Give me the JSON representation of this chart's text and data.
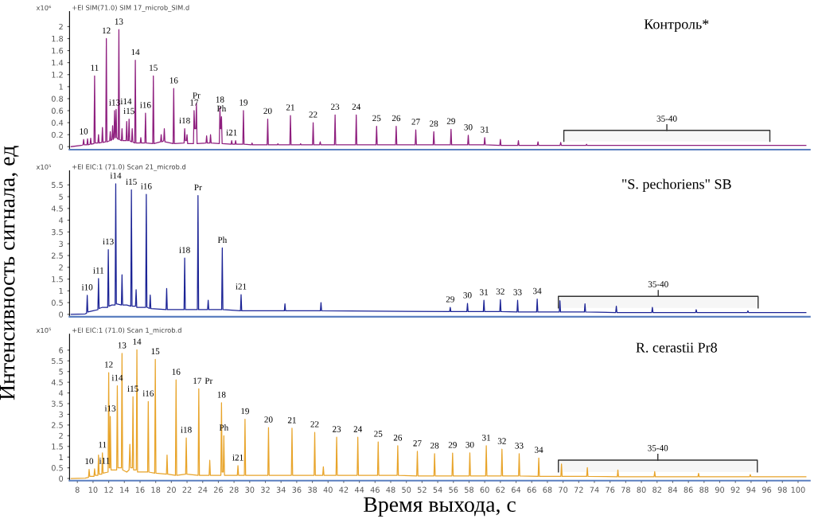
{
  "chart_data": [
    {
      "type": "line",
      "xlim": [
        7,
        101.5
      ],
      "ylim": [
        -0.05,
        2.25
      ],
      "yticks": [
        0,
        0.2,
        0.4,
        0.6,
        0.8,
        1,
        1.2,
        1.4,
        1.6,
        1.8,
        2
      ],
      "tick_labels": "y",
      "grid": false,
      "legend": false,
      "title": "Контроль*",
      "series": [
        {
          "color": "#8e1e7e",
          "x": [
            7.2,
            8.5,
            8.72,
            8.8,
            8.88,
            9.22,
            9.3,
            9.38,
            9.62,
            9.7,
            9.78,
            10.12,
            10.2,
            10.28,
            10.62,
            10.7,
            10.78,
            11.12,
            11.2,
            11.28,
            11.62,
            11.7,
            11.78,
            12.12,
            12.2,
            12.28,
            12.42,
            12.5,
            12.58,
            12.67,
            12.75,
            12.83,
            12.87,
            12.95,
            13.03,
            13.22,
            13.3,
            13.38,
            13.62,
            13.7,
            13.78,
            14.22,
            14.3,
            14.38,
            14.52,
            14.6,
            14.68,
            14.92,
            15.0,
            15.08,
            15.32,
            15.4,
            15.48,
            16.02,
            16.1,
            16.18,
            16.62,
            16.7,
            16.78,
            17.62,
            17.7,
            17.78,
            18.62,
            18.7,
            18.78,
            19.02,
            19.1,
            19.18,
            20.22,
            20.3,
            20.38,
            21.62,
            21.7,
            21.78,
            21.92,
            22.0,
            22.08,
            22.82,
            22.9,
            22.98,
            23.12,
            23.2,
            23.28,
            24.42,
            24.5,
            24.58,
            24.92,
            25.0,
            25.08,
            26.12,
            26.2,
            26.28,
            26.32,
            26.4,
            26.48,
            27.62,
            27.7,
            27.78,
            28.12,
            28.2,
            28.28,
            29.12,
            29.2,
            29.28,
            30.22,
            30.3,
            30.38,
            32.22,
            32.3,
            32.38,
            33.52,
            33.6,
            33.68,
            35.12,
            35.2,
            35.28,
            36.42,
            36.5,
            36.58,
            38.02,
            38.1,
            38.18,
            38.92,
            39.0,
            39.08,
            40.82,
            40.9,
            40.98,
            43.52,
            43.6,
            43.68,
            46.12,
            46.2,
            46.28,
            48.62,
            48.7,
            48.78,
            51.12,
            51.2,
            51.28,
            53.42,
            53.5,
            53.58,
            55.62,
            55.7,
            55.78,
            57.82,
            57.9,
            57.98,
            59.92,
            60.0,
            60.08,
            61.92,
            62.0,
            62.08,
            64.22,
            64.3,
            64.38,
            66.72,
            66.8,
            66.88,
            69.62,
            69.7,
            69.78,
            72.92,
            73.0,
            73.08,
            101
          ],
          "values": [
            0,
            0.02,
            0.03,
            0.12,
            0.03,
            0.03,
            0.13,
            0.03,
            0.04,
            0.14,
            0.04,
            0.05,
            1.18,
            0.06,
            0.06,
            0.2,
            0.06,
            0.07,
            0.32,
            0.07,
            0.08,
            1.8,
            0.08,
            0.1,
            0.25,
            0.1,
            0.12,
            0.35,
            0.12,
            0.15,
            0.6,
            0.15,
            0.15,
            0.62,
            0.15,
            0.12,
            1.95,
            0.12,
            0.1,
            0.3,
            0.1,
            0.1,
            0.42,
            0.1,
            0.1,
            0.46,
            0.1,
            0.08,
            0.3,
            0.08,
            0.06,
            1.44,
            0.06,
            0.06,
            0.15,
            0.06,
            0.06,
            0.56,
            0.06,
            0.05,
            1.18,
            0.05,
            0.08,
            0.2,
            0.08,
            0.1,
            0.3,
            0.08,
            0.05,
            0.97,
            0.05,
            0.06,
            0.3,
            0.1,
            0.1,
            0.2,
            0.05,
            0.05,
            0.6,
            0.3,
            0.3,
            0.72,
            0.05,
            0.06,
            0.18,
            0.06,
            0.06,
            0.2,
            0.06,
            0.05,
            0.65,
            0.3,
            0.3,
            0.5,
            0.05,
            0.04,
            0.1,
            0.04,
            0.04,
            0.1,
            0.04,
            0.04,
            0.6,
            0.04,
            0.03,
            0.06,
            0.03,
            0.03,
            0.46,
            0.03,
            0.03,
            0.05,
            0.03,
            0.03,
            0.52,
            0.03,
            0.03,
            0.05,
            0.03,
            0.03,
            0.4,
            0.03,
            0.03,
            0.08,
            0.03,
            0.03,
            0.53,
            0.03,
            0.03,
            0.53,
            0.03,
            0.03,
            0.34,
            0.03,
            0.03,
            0.34,
            0.03,
            0.03,
            0.28,
            0.03,
            0.03,
            0.25,
            0.03,
            0.03,
            0.29,
            0.03,
            0.03,
            0.19,
            0.03,
            0.03,
            0.15,
            0.03,
            0.02,
            0.12,
            0.02,
            0.02,
            0.1,
            0.02,
            0.02,
            0.08,
            0.02,
            0.02,
            0.07,
            0.02,
            0.02,
            0.04,
            0.02,
            0.02
          ]
        }
      ],
      "bands": [
        {
          "axis": "x",
          "from": 70.1,
          "to": 96.4,
          "label": "35-40"
        }
      ],
      "annotations": [
        "x10⁶",
        "+EI SIM(71.0) SIM 17_microb_SIM.d",
        {
          "text": "10",
          "x": 8.8,
          "y": 0.12
        },
        {
          "text": "11",
          "x": 10.2,
          "y": 1.18
        },
        {
          "text": "12",
          "x": 11.7,
          "y": 1.8
        },
        {
          "text": "i13",
          "x": 12.75,
          "y": 0.6
        },
        {
          "text": "i14",
          "x": 12.95,
          "y": 0.62
        },
        {
          "text": "13",
          "x": 13.3,
          "y": 1.95
        },
        {
          "text": "i15",
          "x": 14.6,
          "y": 0.46
        },
        {
          "text": "14",
          "x": 15.4,
          "y": 1.44
        },
        {
          "text": "i16",
          "x": 16.7,
          "y": 0.56
        },
        {
          "text": "15",
          "x": 17.7,
          "y": 1.18
        },
        {
          "text": "16",
          "x": 20.3,
          "y": 0.97
        },
        {
          "text": "i18",
          "x": 21.7,
          "y": 0.3
        },
        {
          "text": "17",
          "x": 22.9,
          "y": 0.6
        },
        {
          "text": "Pr",
          "x": 23.2,
          "y": 0.72
        },
        {
          "text": "18",
          "x": 26.2,
          "y": 0.65
        },
        {
          "text": "Ph",
          "x": 26.4,
          "y": 0.5
        },
        {
          "text": "i21",
          "x": 27.7,
          "y": 0.1
        },
        {
          "text": "19",
          "x": 29.2,
          "y": 0.6
        },
        {
          "text": "20",
          "x": 32.3,
          "y": 0.46
        },
        {
          "text": "21",
          "x": 35.2,
          "y": 0.52
        },
        {
          "text": "22",
          "x": 38.1,
          "y": 0.4
        },
        {
          "text": "23",
          "x": 40.9,
          "y": 0.53
        },
        {
          "text": "24",
          "x": 43.6,
          "y": 0.53
        },
        {
          "text": "25",
          "x": 46.2,
          "y": 0.34
        },
        {
          "text": "26",
          "x": 48.7,
          "y": 0.34
        },
        {
          "text": "27",
          "x": 51.2,
          "y": 0.28
        },
        {
          "text": "28",
          "x": 53.5,
          "y": 0.25
        },
        {
          "text": "29",
          "x": 55.7,
          "y": 0.29
        },
        {
          "text": "30",
          "x": 57.9,
          "y": 0.19
        },
        {
          "text": "31",
          "x": 60.0,
          "y": 0.15
        }
      ]
    },
    {
      "type": "line",
      "xlim": [
        7,
        101.5
      ],
      "ylim": [
        -0.1,
        6.1
      ],
      "yticks": [
        0,
        0.5,
        1,
        1.5,
        2,
        2.5,
        3,
        3.5,
        4,
        4.5,
        5,
        5.5
      ],
      "tick_labels": "y",
      "grid": false,
      "legend": false,
      "ylabel": "Интенсивность сигнала, ед",
      "title": "\"S. pechoriens\" SB",
      "series": [
        {
          "color": "#1c2496",
          "x": [
            7.2,
            9.0,
            9.18,
            9.26,
            9.34,
            10.0,
            10.62,
            10.7,
            10.78,
            11.2,
            11.87,
            11.95,
            12.03,
            12.4,
            12.82,
            12.9,
            12.98,
            13.62,
            13.7,
            13.78,
            14.3,
            14.82,
            14.9,
            14.98,
            15.42,
            15.5,
            15.58,
            16.72,
            16.8,
            16.88,
            17.22,
            17.3,
            17.38,
            19.32,
            19.4,
            19.48,
            21.62,
            21.7,
            21.78,
            23.32,
            23.4,
            23.48,
            24.62,
            24.7,
            24.78,
            26.42,
            26.5,
            26.58,
            28.82,
            28.9,
            28.98,
            34.42,
            34.5,
            34.58,
            39.02,
            39.1,
            39.18,
            55.52,
            55.6,
            55.68,
            57.72,
            57.8,
            57.88,
            59.82,
            59.9,
            59.98,
            61.92,
            62.0,
            62.08,
            64.12,
            64.2,
            64.28,
            66.62,
            66.7,
            66.78,
            69.52,
            69.6,
            69.68,
            72.72,
            72.8,
            72.88,
            76.72,
            76.8,
            76.88,
            81.32,
            81.4,
            81.48,
            86.92,
            87.0,
            87.08,
            93.52,
            93.6,
            93.68,
            101
          ],
          "values": [
            0,
            0.02,
            0.05,
            0.81,
            0.1,
            0.15,
            0.2,
            1.52,
            0.25,
            0.3,
            0.3,
            2.75,
            0.35,
            0.4,
            0.4,
            5.55,
            0.45,
            0.4,
            1.68,
            0.4,
            0.4,
            0.35,
            5.29,
            0.35,
            0.35,
            1.05,
            0.3,
            0.3,
            5.1,
            0.3,
            0.25,
            0.82,
            0.25,
            0.2,
            1.1,
            0.2,
            0.2,
            2.39,
            0.2,
            0.2,
            5.05,
            0.2,
            0.2,
            0.6,
            0.2,
            0.2,
            2.82,
            0.2,
            0.15,
            0.84,
            0.15,
            0.15,
            0.45,
            0.15,
            0.15,
            0.5,
            0.15,
            0.12,
            0.3,
            0.12,
            0.12,
            0.47,
            0.12,
            0.12,
            0.6,
            0.12,
            0.12,
            0.63,
            0.12,
            0.1,
            0.6,
            0.1,
            0.1,
            0.65,
            0.1,
            0.1,
            0.58,
            0.1,
            0.1,
            0.45,
            0.1,
            0.08,
            0.35,
            0.08,
            0.08,
            0.3,
            0.08,
            0.08,
            0.2,
            0.08,
            0.08,
            0.15,
            0.08,
            0.08
          ]
        }
      ],
      "bands": [
        {
          "axis": "x",
          "from": 69.4,
          "to": 94.9,
          "label": "35-40"
        }
      ],
      "annotations": [
        "x10⁵",
        "+EI EIC:1 (71.0) Scan 21_microb.d",
        {
          "text": "i10",
          "x": 9.26,
          "y": 0.81
        },
        {
          "text": "i11",
          "x": 10.7,
          "y": 1.52
        },
        {
          "text": "i13",
          "x": 11.95,
          "y": 2.75
        },
        {
          "text": "i14",
          "x": 12.9,
          "y": 5.55
        },
        {
          "text": "i15",
          "x": 14.9,
          "y": 5.29
        },
        {
          "text": "i16",
          "x": 16.8,
          "y": 5.1
        },
        {
          "text": "i18",
          "x": 21.7,
          "y": 2.39
        },
        {
          "text": "Pr",
          "x": 23.4,
          "y": 5.05
        },
        {
          "text": "Ph",
          "x": 26.5,
          "y": 2.82
        },
        {
          "text": "i21",
          "x": 28.9,
          "y": 0.84
        },
        {
          "text": "29",
          "x": 55.6,
          "y": 0.3
        },
        {
          "text": "30",
          "x": 57.8,
          "y": 0.47
        },
        {
          "text": "31",
          "x": 59.9,
          "y": 0.6
        },
        {
          "text": "32",
          "x": 62.0,
          "y": 0.63
        },
        {
          "text": "33",
          "x": 64.2,
          "y": 0.6
        },
        {
          "text": "34",
          "x": 66.7,
          "y": 0.65
        }
      ]
    },
    {
      "type": "line",
      "xlim": [
        7,
        101.5
      ],
      "ylim": [
        -0.1,
        6.75
      ],
      "yticks": [
        0,
        0.5,
        1,
        1.5,
        2,
        2.5,
        3,
        3.5,
        4,
        4.5,
        5,
        5.5,
        6
      ],
      "xticks": [
        8,
        10,
        12,
        14,
        16,
        18,
        20,
        22,
        24,
        26,
        28,
        30,
        32,
        34,
        36,
        38,
        40,
        42,
        44,
        46,
        48,
        50,
        52,
        54,
        56,
        58,
        60,
        62,
        64,
        66,
        68,
        70,
        72,
        74,
        76,
        78,
        80,
        82,
        84,
        86,
        88,
        90,
        92,
        94,
        96,
        98,
        100
      ],
      "grid": false,
      "legend": false,
      "xlabel": "Время выхода, с",
      "title": "R. cerastii Pr8",
      "series": [
        {
          "color": "#e8a42a",
          "x": [
            7.2,
            9.0,
            9.42,
            9.5,
            9.58,
            10.12,
            10.2,
            10.28,
            10.62,
            10.7,
            10.78,
            11.12,
            11.2,
            11.28,
            11.92,
            12.0,
            12.08,
            12.15,
            12.2,
            12.3,
            13.02,
            13.1,
            13.18,
            13.62,
            13.7,
            13.78,
            14.3,
            14.6,
            14.7,
            14.8,
            15.02,
            15.1,
            15.18,
            15.52,
            15.6,
            15.68,
            16.97,
            17.05,
            17.13,
            17.87,
            17.95,
            18.03,
            19.37,
            19.45,
            19.53,
            20.52,
            20.6,
            20.68,
            21.82,
            21.9,
            21.98,
            23.42,
            23.5,
            23.58,
            24.82,
            24.9,
            24.98,
            26.32,
            26.4,
            26.48,
            26.62,
            26.7,
            26.78,
            28.42,
            28.5,
            28.58,
            29.32,
            29.4,
            29.48,
            32.32,
            32.4,
            32.48,
            35.32,
            35.4,
            35.48,
            38.22,
            38.3,
            38.38,
            39.32,
            39.4,
            39.48,
            41.02,
            41.1,
            41.18,
            43.72,
            43.8,
            43.88,
            46.32,
            46.4,
            46.48,
            48.82,
            48.9,
            48.98,
            51.32,
            51.4,
            51.48,
            53.52,
            53.6,
            53.68,
            55.82,
            55.9,
            55.98,
            58.02,
            58.1,
            58.18,
            60.12,
            60.2,
            60.28,
            62.12,
            62.2,
            62.28,
            64.32,
            64.4,
            64.48,
            66.82,
            66.9,
            66.98,
            69.72,
            69.8,
            69.88,
            73.02,
            73.1,
            73.18,
            76.92,
            77.0,
            77.08,
            81.62,
            81.7,
            81.78,
            87.22,
            87.3,
            87.38,
            93.82,
            93.9,
            93.98,
            101
          ],
          "values": [
            0,
            0.02,
            0.05,
            0.43,
            0.1,
            0.1,
            0.45,
            0.15,
            0.15,
            1.1,
            0.2,
            0.2,
            1.2,
            0.25,
            0.3,
            4.95,
            0.5,
            0.5,
            2.9,
            0.4,
            0.4,
            4.33,
            0.5,
            0.5,
            5.85,
            0.4,
            0.3,
            0.4,
            1.6,
            0.5,
            0.5,
            3.82,
            0.4,
            0.4,
            6.02,
            0.3,
            0.3,
            3.6,
            0.3,
            0.25,
            5.57,
            0.25,
            0.2,
            1.1,
            0.2,
            0.15,
            4.61,
            0.15,
            0.2,
            1.9,
            0.2,
            0.15,
            4.19,
            0.15,
            0.15,
            0.85,
            0.15,
            0.15,
            3.54,
            0.3,
            0.3,
            2.0,
            0.15,
            0.15,
            0.6,
            0.15,
            0.15,
            2.77,
            0.15,
            0.15,
            2.38,
            0.15,
            0.15,
            2.35,
            0.15,
            0.15,
            2.16,
            0.15,
            0.15,
            0.55,
            0.15,
            0.15,
            1.93,
            0.15,
            0.15,
            1.93,
            0.15,
            0.15,
            1.71,
            0.15,
            0.15,
            1.53,
            0.15,
            0.12,
            1.27,
            0.12,
            0.12,
            1.16,
            0.12,
            0.12,
            1.19,
            0.12,
            0.12,
            1.2,
            0.12,
            0.12,
            1.53,
            0.12,
            0.12,
            1.37,
            0.12,
            0.12,
            1.16,
            0.12,
            0.1,
            0.96,
            0.1,
            0.1,
            0.68,
            0.1,
            0.1,
            0.51,
            0.1,
            0.08,
            0.4,
            0.08,
            0.08,
            0.32,
            0.08,
            0.08,
            0.24,
            0.08,
            0.08,
            0.18,
            0.08,
            0.08
          ]
        }
      ],
      "bands": [
        {
          "axis": "x",
          "from": 69.4,
          "to": 94.8,
          "label": "35-40"
        }
      ],
      "annotations": [
        "x10⁵",
        "+EI EIC:1 (71.0) Scan 1_microb.d",
        {
          "text": "10",
          "x": 9.5,
          "y": 0.43
        },
        {
          "text": "i11",
          "x": 10.2,
          "y": 0.45
        },
        {
          "text": "11",
          "x": 11.2,
          "y": 1.2
        },
        {
          "text": "12",
          "x": 12.0,
          "y": 4.95
        },
        {
          "text": "i13",
          "x": 12.2,
          "y": 2.9
        },
        {
          "text": "i14",
          "x": 13.1,
          "y": 4.33
        },
        {
          "text": "13",
          "x": 13.7,
          "y": 5.85
        },
        {
          "text": "i15",
          "x": 15.1,
          "y": 3.82
        },
        {
          "text": "14",
          "x": 15.6,
          "y": 6.02
        },
        {
          "text": "i16",
          "x": 17.05,
          "y": 3.6
        },
        {
          "text": "15",
          "x": 17.95,
          "y": 5.57
        },
        {
          "text": "16",
          "x": 20.6,
          "y": 4.61
        },
        {
          "text": "i18",
          "x": 21.9,
          "y": 1.9
        },
        {
          "text": "17",
          "x": 23.3,
          "y": 4.19
        },
        {
          "text": "Pr",
          "x": 23.5,
          "y": 4.19
        },
        {
          "text": "18",
          "x": 26.4,
          "y": 3.54
        },
        {
          "text": "Ph",
          "x": 26.7,
          "y": 2.0
        },
        {
          "text": "i21",
          "x": 28.5,
          "y": 0.6
        },
        {
          "text": "19",
          "x": 29.4,
          "y": 2.77
        },
        {
          "text": "20",
          "x": 32.4,
          "y": 2.38
        },
        {
          "text": "21",
          "x": 35.4,
          "y": 2.35
        },
        {
          "text": "22",
          "x": 38.3,
          "y": 2.16
        },
        {
          "text": "23",
          "x": 41.1,
          "y": 1.93
        },
        {
          "text": "24",
          "x": 43.8,
          "y": 1.93
        },
        {
          "text": "25",
          "x": 46.4,
          "y": 1.71
        },
        {
          "text": "26",
          "x": 48.9,
          "y": 1.53
        },
        {
          "text": "27",
          "x": 51.4,
          "y": 1.27
        },
        {
          "text": "28",
          "x": 53.6,
          "y": 1.16
        },
        {
          "text": "29",
          "x": 55.9,
          "y": 1.19
        },
        {
          "text": "30",
          "x": 58.1,
          "y": 1.2
        },
        {
          "text": "31",
          "x": 60.2,
          "y": 1.53
        },
        {
          "text": "32",
          "x": 62.2,
          "y": 1.37
        },
        {
          "text": "33",
          "x": 64.4,
          "y": 1.16
        },
        {
          "text": "34",
          "x": 66.9,
          "y": 0.96
        }
      ]
    }
  ]
}
